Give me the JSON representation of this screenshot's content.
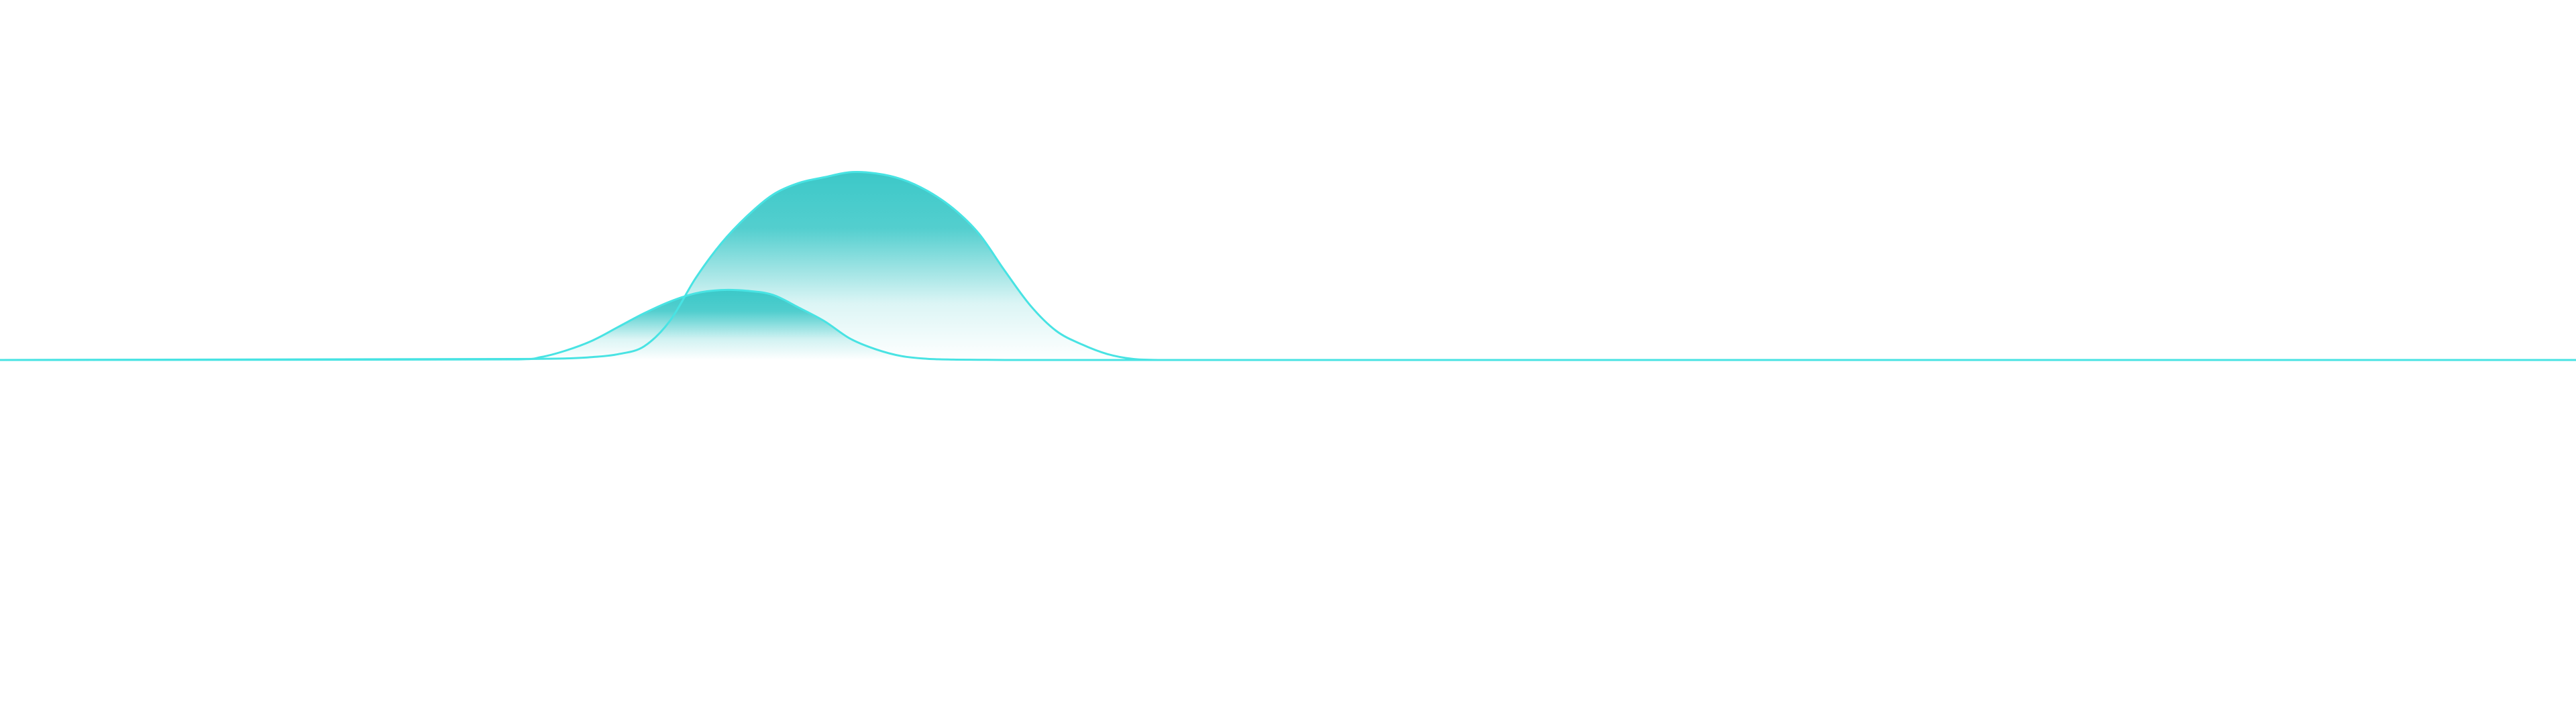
{
  "chart_data": {
    "type": "area",
    "title": "",
    "xlabel": "",
    "ylabel": "",
    "grid": false,
    "legend": "none",
    "axes_visible": false,
    "xlim": [
      0,
      100
    ],
    "ylim": [
      0,
      100
    ],
    "x": [
      0,
      20,
      21,
      22,
      23,
      24,
      25,
      26,
      27,
      28,
      29,
      30,
      31,
      32,
      33,
      34,
      35,
      36,
      37,
      38,
      39,
      40,
      41,
      42,
      43,
      44,
      45,
      46,
      47,
      48,
      100
    ],
    "series": [
      {
        "color": "#3cc8c8",
        "stroke": "#48e3e3",
        "values": [
          0,
          0.3,
          1.5,
          5,
          10,
          17,
          24,
          30,
          34.3,
          36,
          35.6,
          33.5,
          27,
          20,
          11,
          5.5,
          2,
          0.6,
          0.2,
          0.1,
          0,
          0,
          0,
          0,
          0,
          0,
          0,
          0,
          0,
          0,
          0
        ]
      },
      {
        "color": "#3cc8c8",
        "stroke": "#48e3e3",
        "values": [
          0,
          0.5,
          0.6,
          0.8,
          1.5,
          3,
          7,
          20,
          42,
          60,
          74,
          85,
          91,
          94,
          96.6,
          96,
          93,
          87,
          78,
          65,
          46,
          28,
          15,
          8,
          3,
          0.5,
          0,
          0,
          0,
          0,
          0
        ]
      }
    ]
  }
}
